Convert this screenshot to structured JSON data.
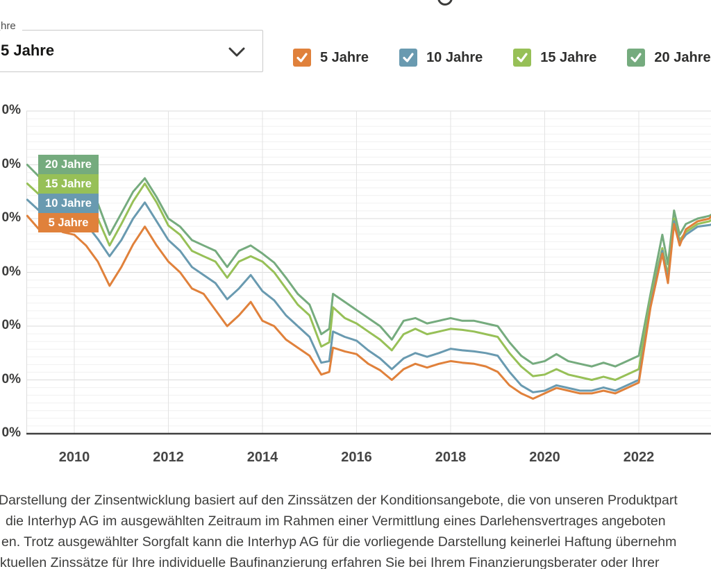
{
  "select": {
    "label_visible": "hre",
    "value": "5 Jahre"
  },
  "legend": {
    "items": [
      {
        "label": "5 Jahre",
        "color": "#E0813B",
        "checked": true
      },
      {
        "label": "10 Jahre",
        "color": "#699AB0",
        "checked": true
      },
      {
        "label": "15 Jahre",
        "color": "#97C057",
        "checked": true
      },
      {
        "label": "20 Jahre",
        "color": "#75AB7E",
        "checked": true
      }
    ]
  },
  "chart_data": {
    "type": "line",
    "grid": true,
    "legend_position": "top",
    "xlim": [
      2009.0,
      2023.6
    ],
    "ylim": [
      0,
      6.1
    ],
    "x_ticks": [
      2010,
      2012,
      2014,
      2016,
      2018,
      2020,
      2022
    ],
    "x_tick_labels": [
      "2010",
      "2012",
      "2014",
      "2016",
      "2018",
      "2020",
      "2022"
    ],
    "y_tick_values": [
      6,
      5,
      4,
      3,
      2,
      1,
      0
    ],
    "y_tick_labels_visible": [
      "0%",
      "0%",
      "0%",
      "0%",
      "0%",
      "0%",
      "0%"
    ],
    "x_years": [
      2009.0,
      2009.25,
      2009.5,
      2009.75,
      2010.0,
      2010.25,
      2010.5,
      2010.75,
      2011.0,
      2011.25,
      2011.5,
      2011.75,
      2012.0,
      2012.25,
      2012.5,
      2012.75,
      2013.0,
      2013.25,
      2013.5,
      2013.75,
      2014.0,
      2014.25,
      2014.5,
      2014.75,
      2015.0,
      2015.25,
      2015.42,
      2015.5,
      2015.75,
      2016.0,
      2016.25,
      2016.5,
      2016.75,
      2017.0,
      2017.25,
      2017.5,
      2017.75,
      2018.0,
      2018.25,
      2018.5,
      2018.75,
      2019.0,
      2019.25,
      2019.5,
      2019.75,
      2020.0,
      2020.25,
      2020.5,
      2020.75,
      2021.0,
      2021.25,
      2021.5,
      2021.75,
      2022.0,
      2022.25,
      2022.5,
      2022.62,
      2022.75,
      2022.87,
      2023.0,
      2023.25,
      2023.5,
      2023.6
    ],
    "series": [
      {
        "name": "20 Jahre",
        "color": "#75AB7E",
        "values": [
          5.0,
          4.78,
          4.82,
          4.75,
          4.7,
          4.55,
          4.28,
          3.7,
          4.1,
          4.5,
          4.75,
          4.4,
          4.0,
          3.85,
          3.6,
          3.5,
          3.4,
          3.1,
          3.4,
          3.5,
          3.35,
          3.18,
          2.9,
          2.6,
          2.4,
          1.85,
          1.95,
          2.6,
          2.45,
          2.3,
          2.15,
          2.0,
          1.75,
          2.1,
          2.15,
          2.05,
          2.1,
          2.15,
          2.1,
          2.1,
          2.05,
          2.0,
          1.7,
          1.45,
          1.3,
          1.35,
          1.48,
          1.35,
          1.3,
          1.25,
          1.32,
          1.25,
          1.35,
          1.45,
          2.6,
          3.7,
          3.15,
          4.15,
          3.7,
          3.9,
          4.0,
          4.05,
          4.1
        ]
      },
      {
        "name": "15 Jahre",
        "color": "#97C057",
        "values": [
          4.65,
          4.45,
          4.52,
          4.45,
          4.4,
          4.25,
          4.0,
          3.5,
          3.9,
          4.32,
          4.65,
          4.3,
          3.87,
          3.7,
          3.4,
          3.3,
          3.2,
          2.9,
          3.2,
          3.3,
          3.2,
          3.0,
          2.7,
          2.4,
          2.2,
          1.62,
          1.7,
          2.35,
          2.15,
          2.05,
          1.9,
          1.75,
          1.55,
          1.85,
          1.95,
          1.85,
          1.9,
          1.95,
          1.93,
          1.9,
          1.85,
          1.8,
          1.5,
          1.25,
          1.07,
          1.1,
          1.2,
          1.1,
          1.05,
          1.0,
          1.06,
          1.0,
          1.1,
          1.2,
          2.5,
          3.45,
          2.95,
          4.0,
          3.6,
          3.75,
          3.9,
          3.95,
          4.0
        ]
      },
      {
        "name": "10 Jahre",
        "color": "#699AB0",
        "values": [
          4.35,
          4.15,
          4.2,
          4.1,
          4.05,
          3.9,
          3.62,
          3.3,
          3.6,
          4.0,
          4.3,
          3.95,
          3.6,
          3.4,
          3.1,
          2.95,
          2.8,
          2.5,
          2.7,
          2.95,
          2.65,
          2.48,
          2.2,
          2.0,
          1.8,
          1.32,
          1.35,
          1.9,
          1.8,
          1.73,
          1.55,
          1.4,
          1.2,
          1.4,
          1.5,
          1.43,
          1.5,
          1.58,
          1.55,
          1.53,
          1.5,
          1.45,
          1.15,
          0.9,
          0.77,
          0.8,
          0.9,
          0.85,
          0.8,
          0.8,
          0.86,
          0.8,
          0.9,
          1.0,
          2.4,
          3.4,
          2.85,
          3.95,
          3.55,
          3.7,
          3.85,
          3.88,
          3.9
        ]
      },
      {
        "name": "5 Jahre",
        "color": "#E0813B",
        "values": [
          4.05,
          3.8,
          3.9,
          3.75,
          3.7,
          3.5,
          3.2,
          2.75,
          3.1,
          3.52,
          3.85,
          3.5,
          3.2,
          3.0,
          2.7,
          2.6,
          2.3,
          2.0,
          2.2,
          2.45,
          2.1,
          2.0,
          1.75,
          1.6,
          1.45,
          1.1,
          1.15,
          1.6,
          1.53,
          1.48,
          1.3,
          1.18,
          1.0,
          1.2,
          1.3,
          1.23,
          1.3,
          1.35,
          1.32,
          1.3,
          1.25,
          1.15,
          0.9,
          0.75,
          0.65,
          0.75,
          0.85,
          0.8,
          0.75,
          0.75,
          0.8,
          0.75,
          0.85,
          0.95,
          2.35,
          3.35,
          2.8,
          3.9,
          3.5,
          3.8,
          3.95,
          4.0,
          4.1
        ]
      }
    ],
    "inline_labels": [
      {
        "label": "20 Jahre",
        "color": "#75AB7E"
      },
      {
        "label": "15 Jahre",
        "color": "#97C057"
      },
      {
        "label": "10 Jahre",
        "color": "#699AB0"
      },
      {
        "label": "5 Jahre",
        "color": "#E0813B"
      }
    ]
  },
  "footer": {
    "lines": [
      "Darstellung der Zinsentwicklung basiert auf den Zinssätzen der Konditionsangebote, die von unseren Produktpart",
      "die Interhyp AG im ausgewählten Zeitraum im Rahmen einer Vermittlung eines Darlehensvertrages angeboten",
      "en. Trotz ausgewählter Sorgfalt kann die Interhyp AG für die vorliegende Darstellung keinerlei Haftung übernehm",
      "ktuellen Zinssätze für Ihre individuelle Baufinanzierung erfahren Sie bei Ihrem Finanzierungsberater oder Ihrer"
    ]
  }
}
